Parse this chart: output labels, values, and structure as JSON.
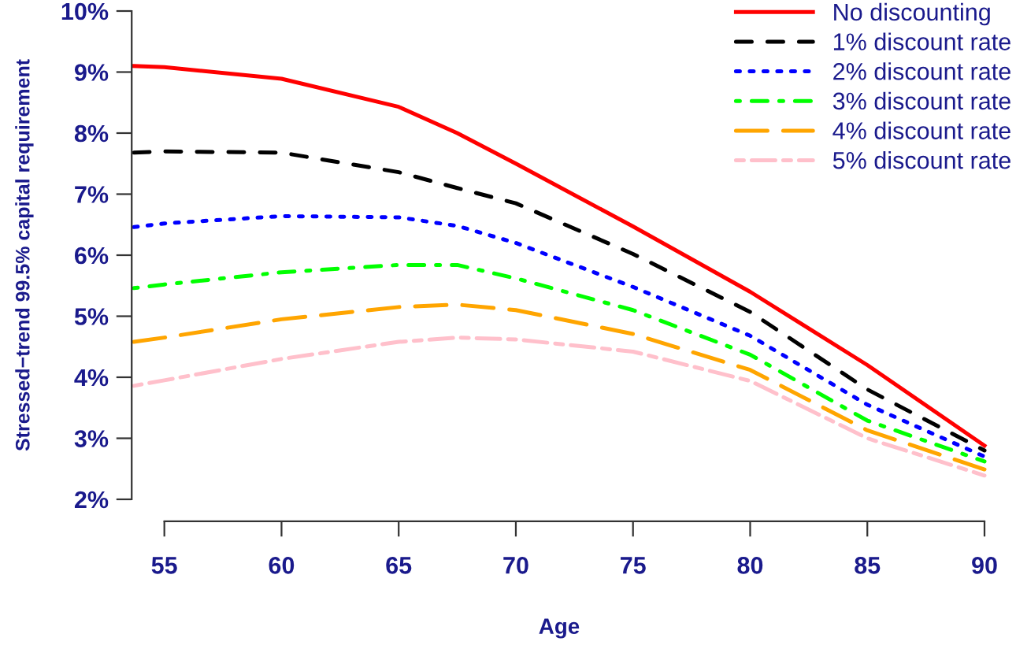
{
  "chart_data": {
    "type": "line",
    "xlabel": "Age",
    "ylabel": "Stressed−trend 99.5% capital requirement",
    "x": [
      53.7,
      55,
      60,
      65,
      67.5,
      70,
      75,
      80,
      85,
      90
    ],
    "series": [
      {
        "name": "No discounting",
        "color": "#ff0000",
        "line_style": "solid",
        "values": [
          9.1,
          9.08,
          8.89,
          8.43,
          8.0,
          7.5,
          6.47,
          5.4,
          4.2,
          2.88
        ]
      },
      {
        "name": "1% discount rate",
        "color": "#000000",
        "line_style": "dashed",
        "values": [
          7.68,
          7.7,
          7.68,
          7.36,
          7.1,
          6.85,
          6.02,
          5.07,
          3.8,
          2.8
        ]
      },
      {
        "name": "2% discount rate",
        "color": "#0000ff",
        "line_style": "dotted",
        "values": [
          6.46,
          6.52,
          6.64,
          6.62,
          6.48,
          6.2,
          5.48,
          4.68,
          3.55,
          2.7
        ]
      },
      {
        "name": "3% discount rate",
        "color": "#00ff00",
        "line_style": "dashdot",
        "values": [
          5.46,
          5.52,
          5.72,
          5.84,
          5.84,
          5.62,
          5.1,
          4.37,
          3.29,
          2.62
        ]
      },
      {
        "name": "4% discount rate",
        "color": "#ffa500",
        "line_style": "longdash",
        "values": [
          4.58,
          4.65,
          4.95,
          5.15,
          5.19,
          5.1,
          4.71,
          4.12,
          3.13,
          2.49
        ]
      },
      {
        "name": "5% discount rate",
        "color": "#ffc0cb",
        "line_style": "twodash",
        "values": [
          3.86,
          3.95,
          4.3,
          4.58,
          4.65,
          4.62,
          4.42,
          3.94,
          3.0,
          2.39
        ]
      }
    ],
    "xlim": [
      53.7,
      90
    ],
    "ylim": [
      2,
      10
    ],
    "xticks": [
      55,
      60,
      65,
      70,
      75,
      80,
      85,
      90
    ],
    "yticks": [
      {
        "value": 2,
        "label": "2%"
      },
      {
        "value": 3,
        "label": "3%"
      },
      {
        "value": 4,
        "label": "4%"
      },
      {
        "value": 5,
        "label": "5%"
      },
      {
        "value": 6,
        "label": "6%"
      },
      {
        "value": 7,
        "label": "7%"
      },
      {
        "value": 8,
        "label": "8%"
      },
      {
        "value": 9,
        "label": "9%"
      },
      {
        "value": 10,
        "label": "10%"
      }
    ],
    "grid": false,
    "legend": "top right",
    "marker": "none"
  }
}
